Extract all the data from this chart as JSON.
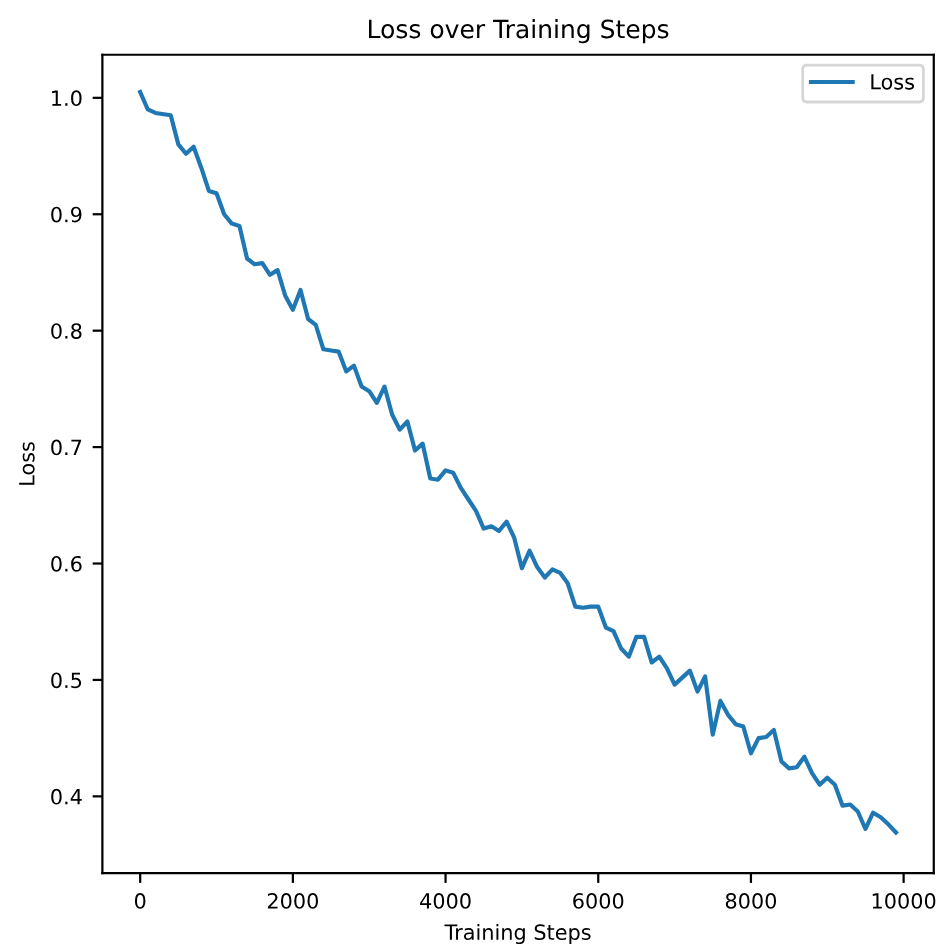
{
  "chart_data": {
    "type": "line",
    "title": "Loss over Training Steps",
    "xlabel": "Training Steps",
    "ylabel": "Loss",
    "x": [
      0,
      100,
      200,
      400,
      500,
      600,
      700,
      800,
      900,
      1000,
      1100,
      1200,
      1300,
      1400,
      1500,
      1600,
      1700,
      1800,
      1900,
      2000,
      2100,
      2200,
      2300,
      2400,
      2500,
      2600,
      2700,
      2800,
      2900,
      3000,
      3100,
      3200,
      3300,
      3400,
      3500,
      3600,
      3700,
      3800,
      3900,
      4000,
      4100,
      4200,
      4300,
      4400,
      4500,
      4600,
      4700,
      4800,
      4900,
      5000,
      5100,
      5200,
      5300,
      5400,
      5500,
      5600,
      5700,
      5800,
      5900,
      6000,
      6100,
      6200,
      6300,
      6400,
      6500,
      6600,
      6700,
      6800,
      6900,
      7000,
      7100,
      7200,
      7300,
      7400,
      7500,
      7600,
      7700,
      7800,
      7900,
      8000,
      8100,
      8200,
      8300,
      8400,
      8500,
      8600,
      8700,
      8800,
      8900,
      9000,
      9100,
      9200,
      9300,
      9400,
      9500,
      9600,
      9700,
      9800,
      9900
    ],
    "series": [
      {
        "name": "Loss",
        "color": "#1f77b4",
        "values": [
          1.005,
          0.99,
          0.987,
          0.985,
          0.96,
          0.952,
          0.958,
          0.94,
          0.92,
          0.918,
          0.9,
          0.892,
          0.89,
          0.862,
          0.857,
          0.858,
          0.848,
          0.852,
          0.83,
          0.818,
          0.835,
          0.81,
          0.805,
          0.784,
          0.783,
          0.782,
          0.765,
          0.77,
          0.752,
          0.748,
          0.738,
          0.752,
          0.728,
          0.715,
          0.722,
          0.697,
          0.703,
          0.673,
          0.672,
          0.68,
          0.678,
          0.665,
          0.655,
          0.645,
          0.63,
          0.632,
          0.628,
          0.636,
          0.622,
          0.596,
          0.611,
          0.597,
          0.588,
          0.595,
          0.592,
          0.583,
          0.563,
          0.562,
          0.563,
          0.563,
          0.545,
          0.542,
          0.527,
          0.52,
          0.537,
          0.537,
          0.515,
          0.52,
          0.51,
          0.496,
          0.502,
          0.508,
          0.49,
          0.503,
          0.453,
          0.482,
          0.47,
          0.462,
          0.46,
          0.437,
          0.45,
          0.451,
          0.457,
          0.43,
          0.424,
          0.425,
          0.434,
          0.42,
          0.41,
          0.416,
          0.41,
          0.392,
          0.393,
          0.387,
          0.372,
          0.386,
          0.382,
          0.376,
          0.369
        ]
      }
    ],
    "xlim": [
      -495,
      10395
    ],
    "ylim": [
      0.334,
      1.037
    ],
    "xticks": [
      0,
      2000,
      4000,
      6000,
      8000,
      10000
    ],
    "yticks": [
      0.4,
      0.5,
      0.6,
      0.7,
      0.8,
      0.9,
      {
        "value": 1.0,
        "label": "1.0"
      }
    ],
    "legend": "top right",
    "grid": false
  }
}
